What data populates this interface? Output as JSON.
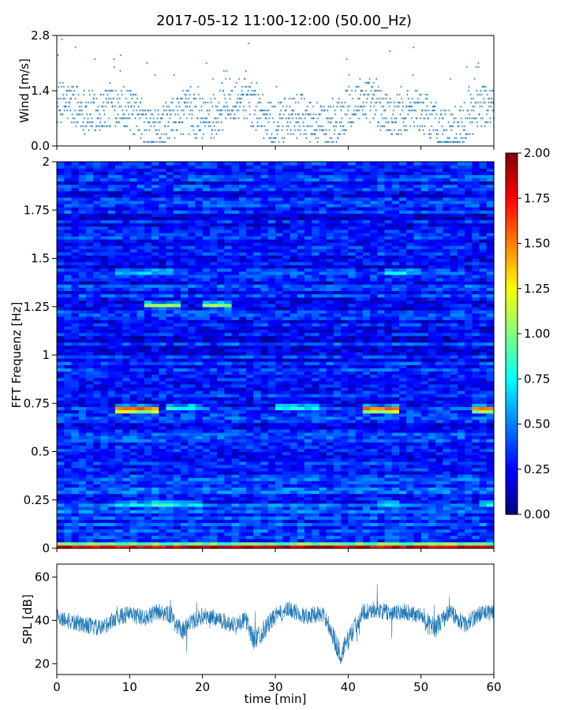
{
  "figure": {
    "title": "2017-05-12 11:00-12:00 (50.00_Hz)"
  },
  "chart_data": [
    {
      "id": "wind",
      "type": "scatter",
      "title": "",
      "xlabel": "",
      "ylabel": "Wind [m/s]",
      "xlim": [
        0,
        60
      ],
      "ylim": [
        0,
        2.8
      ],
      "yticks": [
        "0.0",
        "1.4",
        "2.8"
      ],
      "ytick_values": [
        0,
        1.4,
        2.8
      ],
      "x_unit": "min",
      "point_color": "#1f77b4",
      "marker": "+",
      "note_values": "dense ~1-second samples, quantized wind speed 0.1-2.8 m/s"
    },
    {
      "id": "spectrogram",
      "type": "heatmap",
      "title": "",
      "xlabel": "",
      "ylabel": "FFT Frequenz [Hz]",
      "xlim": [
        0,
        60
      ],
      "ylim": [
        0,
        2
      ],
      "yticks": [
        "0",
        "0.25",
        "0.5",
        "0.75",
        "1",
        "1.25",
        "1.5",
        "1.75",
        "2"
      ],
      "ytick_values": [
        0,
        0.25,
        0.5,
        0.75,
        1,
        1.25,
        1.5,
        1.75,
        2
      ],
      "colormap": "jet",
      "colorbar": {
        "range": [
          0,
          2
        ],
        "ticks": [
          "0.00",
          "0.25",
          "0.50",
          "0.75",
          "1.00",
          "1.25",
          "1.50",
          "1.75",
          "2.00"
        ],
        "tick_values": [
          0,
          0.25,
          0.5,
          0.75,
          1,
          1.25,
          1.5,
          1.75,
          2
        ]
      },
      "bands": [
        {
          "freq": 0.72,
          "x_ranges": [
            [
              8.5,
              13.5
            ],
            [
              42.5,
              46.5
            ],
            [
              57,
              60
            ]
          ],
          "value": 1.8
        },
        {
          "freq": 0.73,
          "x_ranges": [
            [
              30,
              35.5
            ],
            [
              15,
              20
            ]
          ],
          "value": 0.9
        },
        {
          "freq": 1.26,
          "x_ranges": [
            [
              12.5,
              16.5
            ],
            [
              20,
              24
            ]
          ],
          "value": 1.1
        },
        {
          "freq": 1.43,
          "x_ranges": [
            [
              8,
              16
            ],
            [
              45,
              50
            ]
          ],
          "value": 0.8
        },
        {
          "freq": 0.23,
          "x_ranges": [
            [
              8,
              20
            ],
            [
              44,
              47
            ],
            [
              58,
              60
            ]
          ],
          "value": 0.9
        },
        {
          "freq": 0.01,
          "x_ranges": [
            [
              0,
              60
            ]
          ],
          "value": 1.9
        }
      ]
    },
    {
      "id": "spl",
      "type": "line",
      "title": "",
      "xlabel": "time [min]",
      "ylabel": "SPL [dB]",
      "xlim": [
        0,
        60
      ],
      "ylim": [
        15,
        66
      ],
      "yticks": [
        "20",
        "40",
        "60"
      ],
      "ytick_values": [
        20,
        40,
        60
      ],
      "xticks": [
        "0",
        "10",
        "20",
        "30",
        "40",
        "50",
        "60"
      ],
      "xtick_values": [
        0,
        10,
        20,
        30,
        40,
        50,
        60
      ],
      "line_color": "#1f77b4",
      "envelope": {
        "x": [
          0,
          2,
          4,
          6,
          8,
          10,
          12,
          14,
          16,
          17,
          18,
          20,
          22,
          24,
          26,
          27,
          28,
          30,
          32,
          34,
          36,
          37,
          38,
          39,
          40,
          42,
          44,
          46,
          48,
          50,
          51,
          52,
          54,
          56,
          58,
          60
        ],
        "mean": [
          42,
          39,
          38,
          36,
          41,
          43,
          41,
          44,
          42,
          34,
          38,
          42,
          41,
          38,
          40,
          31,
          34,
          42,
          45,
          42,
          43,
          41,
          32,
          24,
          31,
          44,
          45,
          43,
          44,
          42,
          38,
          37,
          44,
          38,
          43,
          44
        ],
        "spread": [
          4,
          4,
          4,
          4,
          4,
          4,
          4,
          4,
          4,
          5,
          4,
          4,
          4,
          4,
          4,
          5,
          5,
          4,
          4,
          4,
          4,
          4,
          5,
          5,
          5,
          4,
          4,
          4,
          4,
          4,
          5,
          5,
          4,
          4,
          4,
          4
        ]
      }
    }
  ]
}
